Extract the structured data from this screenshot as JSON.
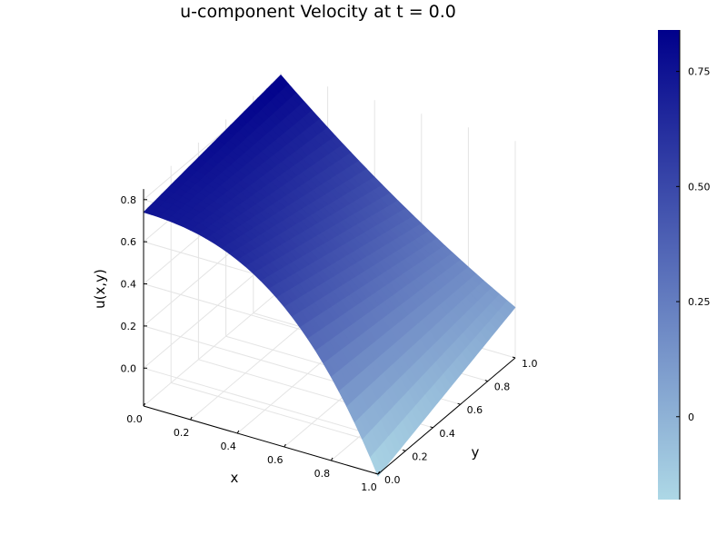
{
  "chart_data": {
    "type": "surface",
    "title": "u-component Velocity at t = 0.0",
    "xlabel": "x",
    "ylabel": "y",
    "zlabel": "u(x,y)",
    "xlim": [
      0.0,
      1.0
    ],
    "ylim": [
      0.0,
      1.0
    ],
    "zlim": [
      -0.2,
      0.85
    ],
    "x_ticks": [
      "0.0",
      "0.2",
      "0.4",
      "0.6",
      "0.8",
      "1.0"
    ],
    "y_ticks": [
      "0.0",
      "0.2",
      "0.4",
      "0.6",
      "0.8",
      "1.0"
    ],
    "z_ticks": [
      "0.0",
      "0.2",
      "0.4",
      "0.6",
      "0.8"
    ],
    "x_tick_values": [
      0.0,
      0.2,
      0.4,
      0.6,
      0.8,
      1.0
    ],
    "y_tick_values": [
      0.0,
      0.2,
      0.4,
      0.6,
      0.8,
      1.0
    ],
    "z_tick_values": [
      0.0,
      0.2,
      0.4,
      0.6,
      0.8
    ],
    "corner_values": {
      "x0_y0": 0.74,
      "x0_y1": 0.84,
      "x1_y1": 0.06,
      "x1_y0": -0.18
    },
    "grid": true,
    "colorbar": {
      "ticks": [
        "0",
        "0.25",
        "0.50",
        "0.75"
      ],
      "tick_values": [
        0.0,
        0.25,
        0.5,
        0.75
      ],
      "range": [
        -0.18,
        0.84
      ],
      "colormap": [
        "#add8e6",
        "#00008b"
      ]
    }
  }
}
